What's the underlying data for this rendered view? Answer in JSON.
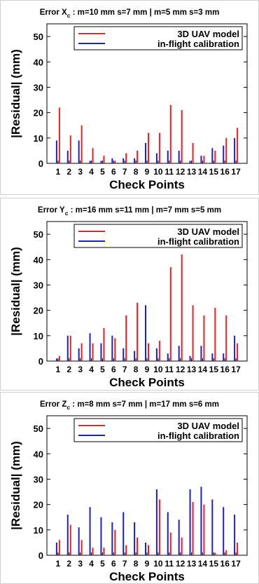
{
  "colors": {
    "model": "#e8202a",
    "calibration": "#2020c0",
    "frame": "#000000",
    "panel_border": "#d0d0d0"
  },
  "chart_data": [
    {
      "type": "bar",
      "title_main": "Error X",
      "title_sub": "c",
      "title_rest": " : m=10 mm s=7 mm | m=5 mm s=3 mm",
      "xlabel": "Check Points",
      "ylabel": "|Residual| (mm)",
      "ylim": [
        0,
        55
      ],
      "yticks": [
        "0",
        "10",
        "20",
        "30",
        "40",
        "50"
      ],
      "categories": [
        "1",
        "2",
        "3",
        "4",
        "5",
        "6",
        "7",
        "8",
        "9",
        "10",
        "11",
        "12",
        "13",
        "14",
        "15",
        "16",
        "17"
      ],
      "legend_position": "top-right",
      "series": [
        {
          "name": "3D UAV model",
          "color": "#e8202a",
          "values": [
            22,
            11,
            15,
            6,
            3,
            1,
            4,
            5,
            12,
            12,
            23,
            21,
            8,
            3,
            5,
            10,
            14
          ]
        },
        {
          "name": "in-flight calibration",
          "color": "#2020c0",
          "values": [
            9,
            5,
            9,
            1,
            1,
            2,
            2,
            2,
            8,
            4,
            5,
            5,
            1,
            3,
            6,
            7,
            10
          ]
        }
      ]
    },
    {
      "type": "bar",
      "title_main": "Error Y",
      "title_sub": "c",
      "title_rest": " : m=16 mm s=11 mm | m=7 mm s=5 mm",
      "xlabel": "Check Points",
      "ylabel": "|Residual| (mm)",
      "ylim": [
        0,
        55
      ],
      "yticks": [
        "0",
        "10",
        "20",
        "30",
        "40",
        "50"
      ],
      "categories": [
        "1",
        "2",
        "3",
        "4",
        "5",
        "6",
        "7",
        "8",
        "9",
        "10",
        "11",
        "12",
        "13",
        "14",
        "15",
        "16",
        "17"
      ],
      "legend_position": "top-right",
      "series": [
        {
          "name": "3D UAV model",
          "color": "#e8202a",
          "values": [
            2,
            10,
            7,
            7,
            13,
            9,
            18,
            23,
            7,
            8,
            37,
            42,
            22,
            18,
            21,
            18,
            7
          ]
        },
        {
          "name": "in-flight calibration",
          "color": "#2020c0",
          "values": [
            1,
            10,
            5,
            11,
            7,
            10,
            5,
            4,
            22,
            5,
            3,
            6,
            2,
            6,
            3,
            3,
            10
          ]
        }
      ]
    },
    {
      "type": "bar",
      "title_main": "Error Z",
      "title_sub": "c",
      "title_rest": " : m=8 mm s=7 mm | m=17 mm s=6 mm",
      "xlabel": "Check Points",
      "ylabel": "|Residual| (mm)",
      "ylim": [
        0,
        55
      ],
      "yticks": [
        "0",
        "10",
        "20",
        "30",
        "40",
        "50"
      ],
      "categories": [
        "1",
        "2",
        "3",
        "4",
        "5",
        "6",
        "7",
        "8",
        "9",
        "10",
        "11",
        "12",
        "13",
        "14",
        "15",
        "16",
        "17"
      ],
      "legend_position": "top-right",
      "series": [
        {
          "name": "3D UAV model",
          "color": "#e8202a",
          "values": [
            6,
            12,
            6,
            3,
            3,
            10,
            4,
            7,
            4,
            22,
            9,
            7,
            21,
            20,
            1,
            2,
            5
          ]
        },
        {
          "name": "in-flight calibration",
          "color": "#2020c0",
          "values": [
            5,
            16,
            11,
            19,
            15,
            13,
            17,
            13,
            5,
            26,
            17,
            14,
            26,
            27,
            22,
            19,
            16
          ]
        }
      ]
    }
  ]
}
